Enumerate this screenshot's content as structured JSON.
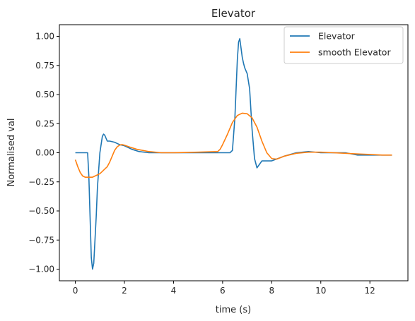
{
  "chart_data": {
    "type": "line",
    "title": "Elevator",
    "xlabel": "time (s)",
    "ylabel": "Normalised val",
    "xlim": [
      -0.65,
      13.55
    ],
    "ylim": [
      -1.1,
      1.1
    ],
    "x_ticks": [
      0,
      2,
      4,
      6,
      8,
      10,
      12
    ],
    "y_ticks": [
      -1.0,
      -0.75,
      -0.5,
      -0.25,
      0.0,
      0.25,
      0.5,
      0.75,
      1.0
    ],
    "x_tick_labels": [
      "0",
      "2",
      "4",
      "6",
      "8",
      "10",
      "12"
    ],
    "y_tick_labels": [
      "−1.00",
      "−0.75",
      "−0.50",
      "−0.25",
      "0.00",
      "0.25",
      "0.50",
      "0.75",
      "1.00"
    ],
    "grid": false,
    "legend_position": "top-right",
    "series": [
      {
        "name": "Elevator",
        "color": "#1f77b4",
        "x": [
          0,
          0.3,
          0.5,
          0.55,
          0.6,
          0.65,
          0.7,
          0.75,
          0.8,
          0.85,
          0.9,
          1.0,
          1.1,
          1.15,
          1.2,
          1.3,
          1.4,
          1.6,
          1.8,
          2.0,
          2.3,
          2.6,
          3.0,
          3.5,
          4.0,
          4.5,
          5.0,
          5.5,
          6.0,
          6.3,
          6.4,
          6.5,
          6.55,
          6.6,
          6.65,
          6.7,
          6.75,
          6.8,
          6.85,
          6.9,
          7.0,
          7.1,
          7.2,
          7.3,
          7.4,
          7.5,
          7.6,
          7.7,
          8.0,
          8.5,
          9.0,
          9.5,
          10.0,
          10.5,
          11.0,
          11.5,
          12.0,
          12.5,
          12.9
        ],
        "y": [
          0.0,
          0.0,
          0.0,
          -0.2,
          -0.55,
          -0.9,
          -1.0,
          -0.95,
          -0.75,
          -0.55,
          -0.3,
          0.0,
          0.14,
          0.16,
          0.15,
          0.1,
          0.1,
          0.09,
          0.07,
          0.06,
          0.03,
          0.01,
          0.0,
          0.0,
          0.0,
          0.0,
          0.0,
          0.0,
          0.0,
          0.0,
          0.02,
          0.3,
          0.55,
          0.8,
          0.95,
          0.98,
          0.9,
          0.82,
          0.77,
          0.73,
          0.68,
          0.55,
          0.2,
          -0.05,
          -0.13,
          -0.1,
          -0.07,
          -0.07,
          -0.07,
          -0.03,
          0.0,
          0.01,
          0.0,
          0.0,
          0.0,
          -0.02,
          -0.02,
          -0.02,
          -0.02
        ]
      },
      {
        "name": "smooth Elevator",
        "color": "#ff7f0e",
        "x": [
          0,
          0.1,
          0.2,
          0.3,
          0.4,
          0.5,
          0.6,
          0.7,
          0.8,
          0.9,
          1.0,
          1.1,
          1.2,
          1.3,
          1.4,
          1.5,
          1.6,
          1.7,
          1.8,
          1.9,
          2.0,
          2.2,
          2.5,
          3.0,
          3.5,
          4.0,
          5.0,
          5.8,
          5.9,
          6.0,
          6.2,
          6.4,
          6.6,
          6.8,
          7.0,
          7.2,
          7.4,
          7.6,
          7.8,
          8.0,
          8.2,
          8.5,
          9.0,
          9.5,
          10.0,
          10.5,
          11.0,
          11.5,
          12.0,
          12.5,
          12.9
        ],
        "y": [
          -0.06,
          -0.12,
          -0.17,
          -0.2,
          -0.21,
          -0.21,
          -0.21,
          -0.21,
          -0.2,
          -0.19,
          -0.18,
          -0.16,
          -0.14,
          -0.12,
          -0.08,
          -0.03,
          0.02,
          0.05,
          0.065,
          0.07,
          0.065,
          0.05,
          0.03,
          0.01,
          0.0,
          0.0,
          0.005,
          0.01,
          0.03,
          0.07,
          0.16,
          0.26,
          0.32,
          0.34,
          0.335,
          0.3,
          0.22,
          0.1,
          0.0,
          -0.05,
          -0.055,
          -0.03,
          -0.005,
          0.005,
          0.005,
          0.0,
          -0.005,
          -0.01,
          -0.015,
          -0.02,
          -0.02
        ]
      }
    ]
  }
}
